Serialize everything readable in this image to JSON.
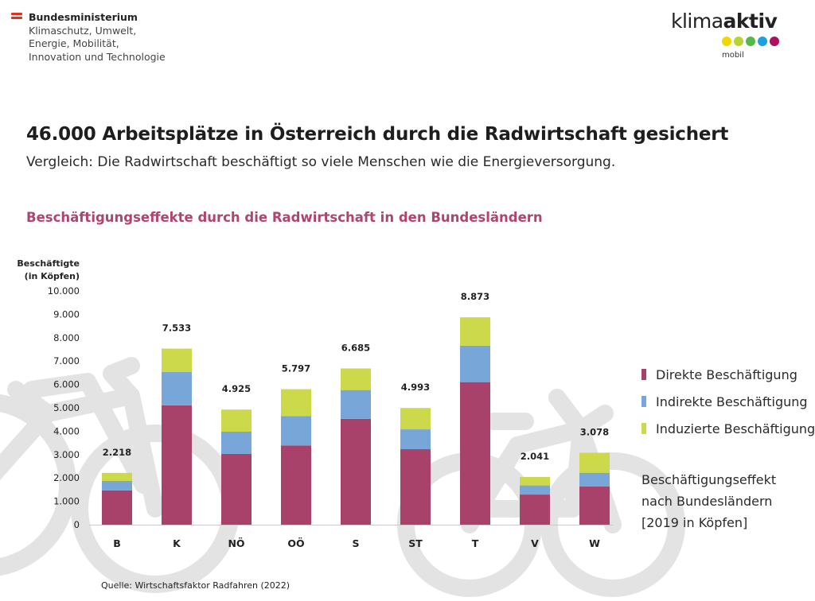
{
  "header": {
    "ministry": {
      "line1": "Bundesministerium",
      "line2": "Klimaschutz, Umwelt,",
      "line3": "Energie, Mobilität,",
      "line4": "Innovation und Technologie"
    },
    "logo": {
      "word_light": "klima",
      "word_bold": "aktiv",
      "sub": "mobil",
      "dot_colors": [
        "#f2d600",
        "#b8d433",
        "#54b84a",
        "#1ea0e0",
        "#b0105a"
      ]
    }
  },
  "title": "46.000 Arbeitsplätze in Österreich durch die Radwirtschaft gesichert",
  "subtitle": "Vergleich: Die Radwirtschaft beschäftigt so viele Menschen wie die Energieversorgung.",
  "legend_note": {
    "line1": "Beschäftigungseffekt",
    "line2": "nach Bundesländern",
    "line3": "[2019 in Köpfen]"
  },
  "source": "Quelle: Wirtschaftsfaktor Radfahren (2022)",
  "chart_data": {
    "type": "bar",
    "stacked": true,
    "title": "Beschäftigungseffekte  durch die Radwirtschaft in den Bundesländern",
    "ylabel_line1": "Beschäftigte",
    "ylabel_line2": "(in Köpfen)",
    "xlabel": "",
    "ylim": [
      0,
      10000
    ],
    "yticks": [
      0,
      1000,
      2000,
      3000,
      4000,
      5000,
      6000,
      7000,
      8000,
      9000,
      10000
    ],
    "ytick_labels": [
      "0",
      "1.000",
      "2.000",
      "3.000",
      "4.000",
      "5.000",
      "6.000",
      "7.000",
      "8.000",
      "9.000",
      "10.000"
    ],
    "grid": false,
    "legend_position": "right",
    "categories": [
      "B",
      "K",
      "NÖ",
      "OÖ",
      "S",
      "ST",
      "T",
      "V",
      "W"
    ],
    "series": [
      {
        "name": "Direkte Beschäftigung",
        "color": "#a8426b",
        "values": [
          1470,
          5110,
          3030,
          3390,
          4530,
          3230,
          6100,
          1290,
          1640
        ]
      },
      {
        "name": "Indirekte Beschäftigung",
        "color": "#78a6d8",
        "values": [
          400,
          1420,
          950,
          1260,
          1230,
          850,
          1560,
          390,
          580
        ]
      },
      {
        "name": "Induzierte Beschäftigung",
        "color": "#cbd94a",
        "values": [
          348,
          1003,
          945,
          1147,
          925,
          913,
          1213,
          361,
          858
        ]
      }
    ],
    "totals": [
      2218,
      7533,
      4925,
      5797,
      6685,
      4993,
      8873,
      2041,
      3078
    ],
    "total_labels": [
      "2.218",
      "7.533",
      "4.925",
      "5.797",
      "6.685",
      "4.993",
      "8.873",
      "2.041",
      "3.078"
    ]
  }
}
